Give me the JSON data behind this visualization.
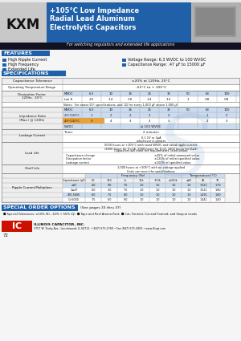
{
  "title_series": "KXM",
  "title_main": "+105°C Low Impedance\nRadial Lead Aluminum\nElectrolytic Capacitors",
  "subtitle": "For switching regulators and extended life applications",
  "features_title": "FEATURES",
  "features_left": [
    "High Ripple Current",
    "High Frequency",
    "Extended Life"
  ],
  "features_right": [
    "Voltage Range: 6.3 WVDC to 100 WVDC",
    "Capacitance Range: .47 µF to 15000 µF"
  ],
  "specs_title": "SPECIFICATIONS",
  "blue_header": "#2060a8",
  "dark_bar": "#111122",
  "light_blue_bg": "#ccdcf0",
  "mid_blue": "#4a7fc1",
  "orange": "#f0a030",
  "white": "#ffffff",
  "black": "#111111",
  "light_gray": "#eeeeee",
  "bg_color": "#f5f5f5",
  "special_blue": "#2060a8",
  "page_number": "72",
  "special_order_title": "SPECIAL ORDER OPTIONS",
  "special_order_ref": "(See pages 33 thru 37)",
  "special_order_items1": "■ Special Tolerances: ±10% (K), -10% + 50% (Q)  ■ Tape and Reel Ammo-Pack  ■ Cut, Formed, Cut and Formed, and Snap-in Leads",
  "company_name": "ILLINOIS CAPACITOR, INC.",
  "company_address": "3757 W. Touhy Ave., Lincolnwood, IL 60712 • (847) 675-1760 • Fax (847) 675-2850 • www.illcap.com",
  "mvdc_vals": [
    "6.3",
    "10",
    "16",
    "25",
    "35",
    "50",
    "63",
    "100"
  ],
  "tan_vals": [
    ".22",
    ".14",
    ".10",
    ".14",
    ".12",
    ".1",
    ".08",
    ".08"
  ],
  "imp_row1": [
    "1",
    "2",
    "2",
    "2",
    "2",
    "",
    "1",
    "2"
  ],
  "imp_row2": [
    "3",
    "4",
    "3",
    "3",
    "3",
    "",
    "2",
    "3"
  ],
  "rc_freq_labels": [
    "50",
    "120",
    "1k",
    "10k",
    "100k",
    "≥100k"
  ],
  "rc_temp_labels": [
    "≤25",
    "45",
    "75"
  ],
  "rc_data": [
    [
      "≤47",
      ".40",
      ".90",
      ".75",
      "1.0",
      "1.0",
      "1.0",
      "1.0",
      "1.521",
      "1.70"
    ],
    [
      "C≤47",
      ".60",
      "3.0",
      "7.5",
      "1.0",
      "1.0",
      "1.0",
      "1.0",
      "1.521",
      "1.80"
    ],
    [
      "470-5000",
      ".60",
      "7.5",
      "8.0",
      "1.0",
      "1.0",
      "1.0",
      "1.0",
      "1.491",
      "1.80"
    ],
    [
      "C>5000",
      ".75",
      "6.0",
      "9.0",
      "1.0",
      "1.0",
      "1.0",
      "1.0",
      "1.441",
      "1.40"
    ]
  ]
}
